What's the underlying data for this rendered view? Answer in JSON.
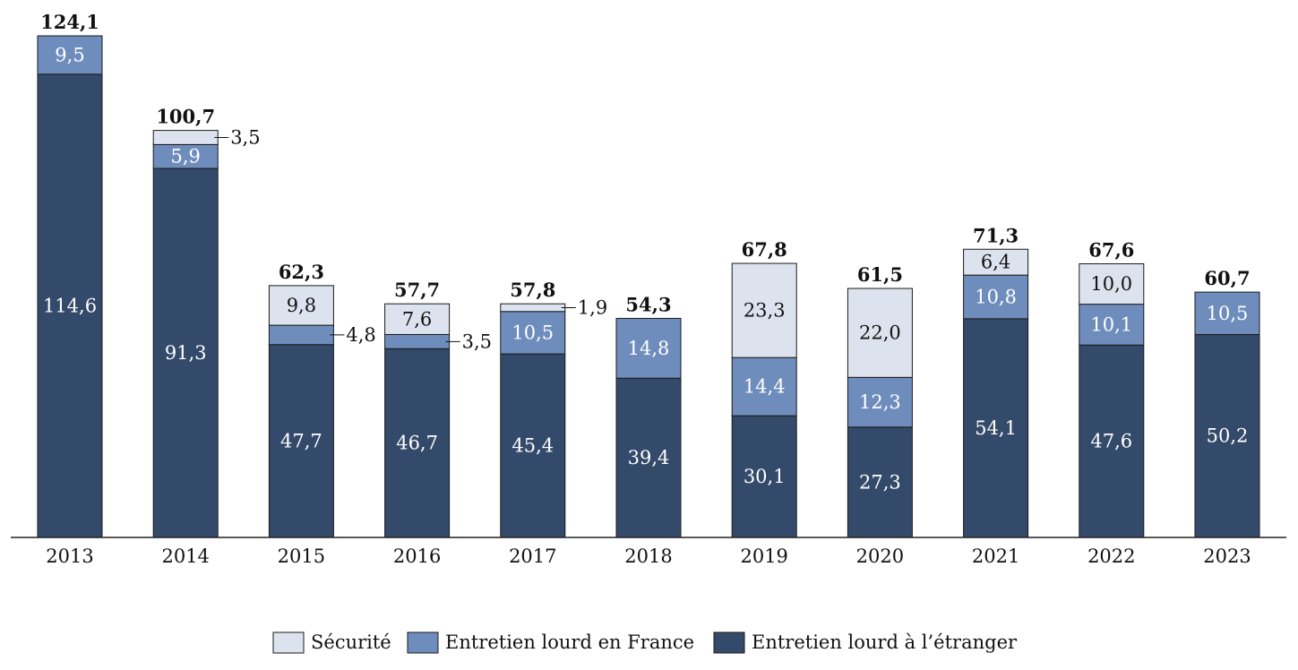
{
  "chart_data": {
    "type": "bar",
    "stacked": true,
    "title": "",
    "xlabel": "",
    "ylabel": "",
    "ylim": [
      0,
      130
    ],
    "grid": false,
    "legend_position": "bottom",
    "categories": [
      "2013",
      "2014",
      "2015",
      "2016",
      "2017",
      "2018",
      "2019",
      "2020",
      "2021",
      "2022",
      "2023"
    ],
    "totals": [
      124.1,
      100.7,
      62.3,
      57.7,
      57.8,
      54.3,
      67.8,
      61.5,
      71.3,
      67.6,
      60.7
    ],
    "total_labels": [
      "124,1",
      "100,7",
      "62,3",
      "57,7",
      "57,8",
      "54,3",
      "67,8",
      "61,5",
      "71,3",
      "67,6",
      "60,7"
    ],
    "series": [
      {
        "name": "Entretien lourd à l’étranger",
        "color": "#344a6b",
        "values": [
          114.6,
          91.3,
          47.7,
          46.7,
          45.4,
          39.4,
          30.1,
          27.3,
          54.1,
          47.6,
          50.2
        ],
        "labels": [
          "114,6",
          "91,3",
          "47,7",
          "46,7",
          "45,4",
          "39,4",
          "30,1",
          "27,3",
          "54,1",
          "47,6",
          "50,2"
        ]
      },
      {
        "name": "Entretien lourd en France",
        "color": "#6e8dbd",
        "values": [
          9.5,
          5.9,
          4.8,
          3.5,
          10.5,
          14.8,
          14.4,
          12.3,
          10.8,
          10.1,
          10.5
        ],
        "labels": [
          "9,5",
          "5,9",
          "4,8",
          "3,5",
          "10,5",
          "14,8",
          "14,4",
          "12,3",
          "10,8",
          "10,1",
          "10,5"
        ]
      },
      {
        "name": "Sécurité",
        "color": "#dde3ee",
        "values": [
          0,
          3.5,
          9.8,
          7.6,
          1.9,
          0,
          23.3,
          22.0,
          6.4,
          10.0,
          0
        ],
        "labels": [
          "",
          "3,5",
          "9,8",
          "7,6",
          "1,9",
          "",
          "23,3",
          "22,0",
          "6,4",
          "10,0",
          ""
        ]
      }
    ],
    "legend": [
      "Sécurité",
      "Entretien lourd en France",
      "Entretien lourd à l’étranger"
    ]
  }
}
